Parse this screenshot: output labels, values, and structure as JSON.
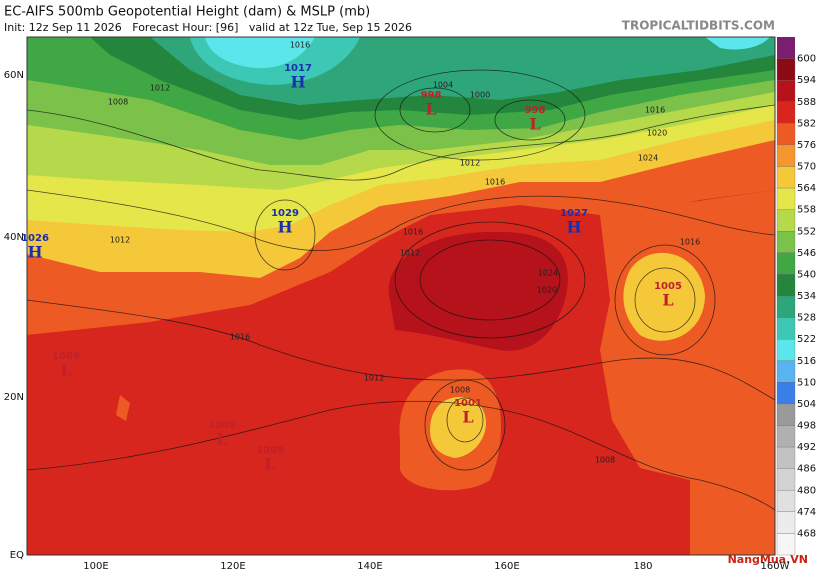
{
  "header": {
    "title": "EC-AIFS 500mb Geopotential Height (dam) & MSLP (mb)",
    "subtitle": "Init: 12z Sep 11 2026   Forecast Hour: [96]   valid at 12z Tue, Sep 15 2026",
    "source": "TROPICALTIDBITS.COM"
  },
  "lat_labels": [
    "60N",
    "40N",
    "20N",
    "EQ"
  ],
  "lon_labels": [
    "100E",
    "120E",
    "140E",
    "160E",
    "180",
    "160W"
  ],
  "colorbar": {
    "values": [
      600,
      594,
      588,
      582,
      576,
      570,
      564,
      558,
      552,
      546,
      540,
      534,
      528,
      522,
      516,
      510,
      504,
      498,
      492,
      486,
      480,
      474,
      468
    ],
    "colors": [
      "#8b0a14",
      "#b5121b",
      "#d7261e",
      "#ee5a24",
      "#f5962e",
      "#f5c83a",
      "#e4e64a",
      "#b5d94a",
      "#7cc24a",
      "#3fa844",
      "#24863d",
      "#2fa67a",
      "#3cc8b4",
      "#5ae6ea",
      "#58b4f0",
      "#3a7ee8",
      "#9a9a9a",
      "#b0b0b0",
      "#c2c2c2",
      "#d2d2d2",
      "#e0e0e0",
      "#ececec",
      "#f6f6f6"
    ],
    "top_color": "#7a1f6e"
  },
  "centers": [
    {
      "type": "H",
      "pressure": "1017"
    },
    {
      "type": "L",
      "pressure": "998"
    },
    {
      "type": "L",
      "pressure": "998"
    },
    {
      "type": "H",
      "pressure": "1029"
    },
    {
      "type": "H",
      "pressure": "1027"
    },
    {
      "type": "H",
      "pressure": "1026"
    },
    {
      "type": "L",
      "pressure": "1005"
    },
    {
      "type": "L",
      "pressure": "1001"
    },
    {
      "type": "L",
      "pressure": "1006"
    },
    {
      "type": "L",
      "pressure": "1009"
    },
    {
      "type": "L",
      "pressure": "1009"
    }
  ],
  "isobar_labels": [
    "1016",
    "1012",
    "1008",
    "1004",
    "1000",
    "1016",
    "1020",
    "1024",
    "1016",
    "1012",
    "1016",
    "1012",
    "1008",
    "1008",
    "1012",
    "1016",
    "1020",
    "1024",
    "1016",
    "1012"
  ],
  "watermark": "NangMua.VN"
}
